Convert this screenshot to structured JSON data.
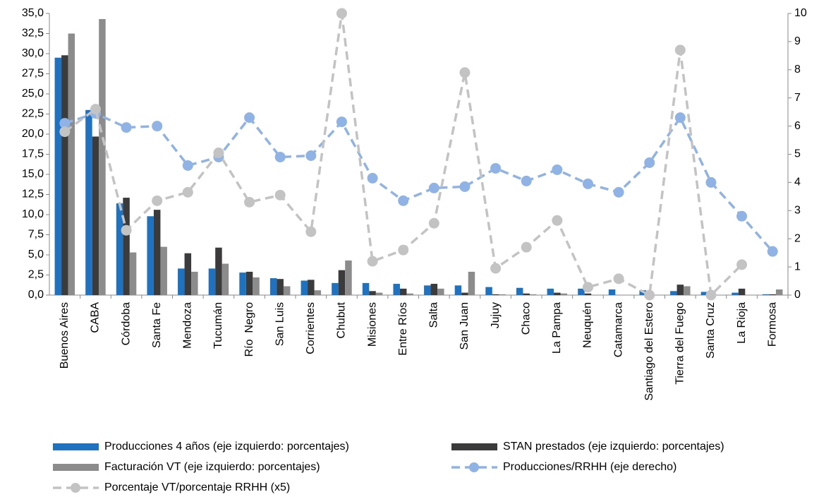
{
  "chart_data": {
    "type": "bar",
    "categories": [
      "Buenos Aires",
      "CABA",
      "Córdoba",
      "Santa Fe",
      "Mendoza",
      "Tucumán",
      "Río  Negro",
      "San Luis",
      "Corrientes",
      "Chubut",
      "Misiones",
      "Entre Ríos",
      "Salta",
      "San Juan",
      "Jujuy",
      "Chaco",
      "La Pampa",
      "Neuquén",
      "Catamarca",
      "Santiago del Estero",
      "Tierra del Fuego",
      "Santa Cruz",
      "La Rioja",
      "Formosa"
    ],
    "series": [
      {
        "name": "Producciones 4 años (eje izquierdo: porcentajes)",
        "type": "bar",
        "color": "#1f72c0",
        "values": [
          29.5,
          23.0,
          11.4,
          9.8,
          3.3,
          3.3,
          2.8,
          2.1,
          1.8,
          1.5,
          1.5,
          1.4,
          1.2,
          1.2,
          1.0,
          0.9,
          0.8,
          0.8,
          0.7,
          0.6,
          0.5,
          0.4,
          0.3,
          0.1
        ]
      },
      {
        "name": "STAN prestados (eje izquierdo: porcentajes)",
        "type": "bar",
        "color": "#3b3b3b",
        "values": [
          29.8,
          19.7,
          12.1,
          10.6,
          5.2,
          5.9,
          2.9,
          2.0,
          1.9,
          3.1,
          0.5,
          0.8,
          1.4,
          0.3,
          0.1,
          0.2,
          0.3,
          0.2,
          0.0,
          0.0,
          1.3,
          0.0,
          0.8,
          0.1
        ]
      },
      {
        "name": "Facturación VT (eje izquierdo: porcentajes)",
        "type": "bar",
        "color": "#8c8c8c",
        "values": [
          32.5,
          34.3,
          5.3,
          6.0,
          2.9,
          3.9,
          2.2,
          1.1,
          0.6,
          4.3,
          0.3,
          0.2,
          0.8,
          2.9,
          0.1,
          0.1,
          0.2,
          0.0,
          0.0,
          0.0,
          1.1,
          0.0,
          0.0,
          0.7
        ]
      },
      {
        "name": "Producciones/RRHH (eje derecho)",
        "type": "line",
        "axis": "y2",
        "dashed": true,
        "color": "#8fb3e4",
        "values": [
          6.1,
          6.45,
          5.95,
          6.0,
          4.6,
          4.9,
          6.3,
          4.9,
          4.95,
          6.15,
          4.15,
          3.35,
          3.8,
          3.85,
          4.5,
          4.05,
          4.45,
          3.95,
          3.65,
          4.7,
          6.3,
          4.0,
          2.8,
          1.55
        ]
      },
      {
        "name": "Porcentaje VT/porcentaje RRHH (x5)",
        "type": "line",
        "axis": "y2",
        "dashed": true,
        "color": "#c3c3c3",
        "values": [
          5.8,
          6.6,
          2.3,
          3.35,
          3.65,
          5.05,
          3.3,
          3.55,
          2.25,
          10.0,
          1.2,
          1.6,
          2.55,
          7.9,
          0.95,
          1.7,
          2.65,
          0.28,
          0.58,
          0.0,
          8.7,
          0.0,
          1.08,
          null
        ]
      }
    ],
    "ylim": [
      0,
      35
    ],
    "yticks": [
      {
        "value": 0,
        "label": "0,0"
      },
      {
        "value": 2.5,
        "label": "2,5"
      },
      {
        "value": 5,
        "label": "5,0"
      },
      {
        "value": 7.5,
        "label": "7,5"
      },
      {
        "value": 10,
        "label": "10,0"
      },
      {
        "value": 12.5,
        "label": "12,5"
      },
      {
        "value": 15,
        "label": "15,0"
      },
      {
        "value": 17.5,
        "label": "17,5"
      },
      {
        "value": 20,
        "label": "20,0"
      },
      {
        "value": 22.5,
        "label": "22,5"
      },
      {
        "value": 25,
        "label": "25,0"
      },
      {
        "value": 27.5,
        "label": "27,5"
      },
      {
        "value": 30,
        "label": "30,0"
      },
      {
        "value": 32.5,
        "label": "32,5"
      },
      {
        "value": 35,
        "label": "35,0"
      }
    ],
    "y2lim": [
      0,
      10
    ],
    "y2ticks": [
      0,
      1,
      2,
      3,
      4,
      5,
      6,
      7,
      8,
      9,
      10
    ],
    "grid": false
  }
}
